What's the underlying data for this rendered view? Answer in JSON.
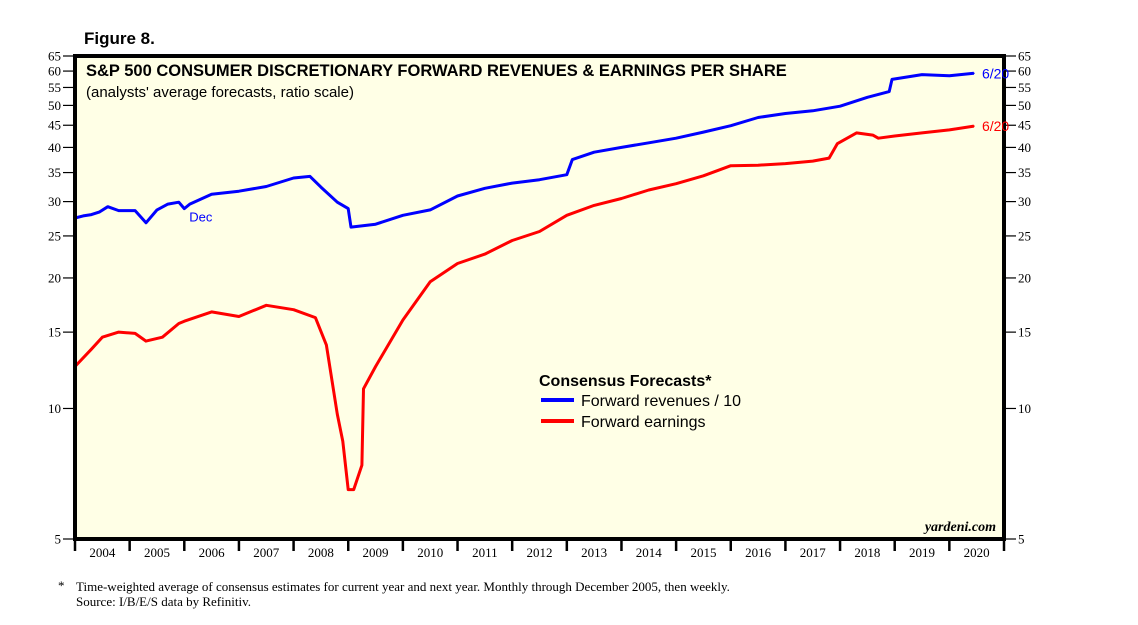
{
  "figure_label": "Figure 8.",
  "footnotes": {
    "marker": "*",
    "line1": "Time-weighted average of consensus estimates for current year and next year. Monthly through December 2005, then weekly.",
    "line2": "Source: I/B/E/S data by Refinitiv."
  },
  "credit": "yardeni.com",
  "colors": {
    "plot_background": "#ffffe6",
    "revenues": "#0000ff",
    "earnings": "#ff0000",
    "axis": "#000000"
  },
  "chart_data": {
    "type": "line",
    "title": "S&P 500 CONSUMER DISCRETIONARY FORWARD REVENUES & EARNINGS PER SHARE",
    "subtitle": "(analysts' average forecasts, ratio scale)",
    "xlabel": "",
    "ylabel": "",
    "yscale": "log",
    "ylim": [
      5,
      65
    ],
    "xlim": [
      2004.0,
      2021.0
    ],
    "grid": false,
    "yticks": [
      5,
      10,
      15,
      20,
      25,
      30,
      35,
      40,
      45,
      50,
      55,
      60,
      65
    ],
    "xtick_labels": [
      "2004",
      "2005",
      "2006",
      "2007",
      "2008",
      "2009",
      "2010",
      "2011",
      "2012",
      "2013",
      "2014",
      "2015",
      "2016",
      "2017",
      "2018",
      "2019",
      "2020"
    ],
    "legend": {
      "title": "Consensus Forecasts*",
      "placement": "center-right",
      "entries": [
        "Forward revenues / 10",
        "Forward earnings"
      ]
    },
    "annotations": [
      {
        "series": "Forward revenues / 10",
        "text": "Dec",
        "x": 2006.0,
        "y": 28.9
      },
      {
        "series": "Forward revenues / 10",
        "text": "6/20",
        "x": 2020.45,
        "y": 59.3
      },
      {
        "series": "Forward earnings",
        "text": "6/20",
        "x": 2020.45,
        "y": 44.8
      }
    ],
    "series": [
      {
        "name": "Forward revenues / 10",
        "x": [
          2004.0,
          2004.15,
          2004.3,
          2004.45,
          2004.6,
          2004.8,
          2005.1,
          2005.3,
          2005.5,
          2005.7,
          2005.9,
          2006.0,
          2006.1,
          2006.5,
          2007.0,
          2007.5,
          2008.0,
          2008.3,
          2008.5,
          2008.8,
          2009.0,
          2009.05,
          2009.5,
          2010.0,
          2010.5,
          2011.0,
          2011.5,
          2012.0,
          2012.5,
          2013.0,
          2013.1,
          2013.5,
          2014.0,
          2014.5,
          2015.0,
          2015.5,
          2016.0,
          2016.5,
          2017.0,
          2017.5,
          2018.0,
          2018.5,
          2018.9,
          2018.95,
          2019.5,
          2020.0,
          2020.45
        ],
        "values": [
          27.5,
          27.8,
          28.0,
          28.4,
          29.2,
          28.6,
          28.6,
          26.8,
          28.7,
          29.6,
          29.9,
          28.9,
          29.6,
          31.2,
          31.7,
          32.5,
          34.0,
          34.3,
          32.4,
          29.9,
          28.9,
          26.2,
          26.6,
          27.9,
          28.7,
          30.9,
          32.2,
          33.1,
          33.7,
          34.6,
          37.5,
          39.0,
          40.0,
          41.0,
          42.0,
          43.4,
          44.9,
          46.9,
          47.9,
          48.6,
          49.8,
          52.2,
          53.8,
          57.4,
          58.9,
          58.5,
          59.3
        ]
      },
      {
        "name": "Forward earnings",
        "x": [
          2004.0,
          2004.3,
          2004.5,
          2004.8,
          2005.1,
          2005.3,
          2005.6,
          2005.9,
          2006.0,
          2006.5,
          2007.0,
          2007.5,
          2008.0,
          2008.4,
          2008.6,
          2008.8,
          2008.9,
          2009.0,
          2009.1,
          2009.25,
          2009.28,
          2009.5,
          2010.0,
          2010.5,
          2011.0,
          2011.5,
          2012.0,
          2012.5,
          2013.0,
          2013.5,
          2014.0,
          2014.5,
          2015.0,
          2015.5,
          2016.0,
          2016.5,
          2017.0,
          2017.5,
          2017.8,
          2017.95,
          2018.3,
          2018.6,
          2018.7,
          2019.0,
          2019.5,
          2020.0,
          2020.45
        ],
        "values": [
          12.5,
          13.7,
          14.6,
          15.0,
          14.9,
          14.3,
          14.6,
          15.7,
          15.9,
          16.7,
          16.3,
          17.3,
          16.9,
          16.2,
          14.0,
          9.7,
          8.4,
          6.5,
          6.5,
          7.4,
          11.1,
          12.5,
          16.0,
          19.6,
          21.6,
          22.7,
          24.4,
          25.6,
          27.9,
          29.4,
          30.5,
          31.9,
          33.0,
          34.4,
          36.3,
          36.4,
          36.7,
          37.2,
          37.8,
          40.8,
          43.2,
          42.7,
          42.0,
          42.5,
          43.2,
          43.9,
          44.8
        ]
      }
    ]
  }
}
